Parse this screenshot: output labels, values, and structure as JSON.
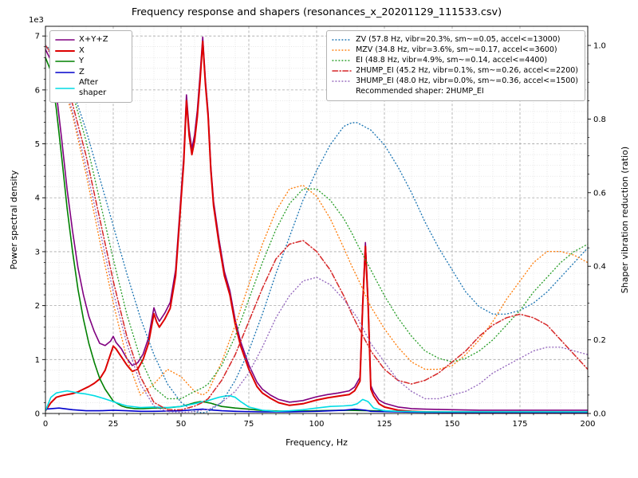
{
  "chart_data": {
    "type": "line",
    "title": "Frequency response and shapers (resonances_x_20201129_111533.csv)",
    "xlabel": "Frequency, Hz",
    "ylabel_left": "Power spectral density",
    "ylabel_right": "Shaper vibration reduction (ratio)",
    "offset_text_left": "1e3",
    "xlim": [
      0,
      200
    ],
    "ylim_left": [
      0,
      7180
    ],
    "ylim_right": [
      0,
      1.052
    ],
    "x_minor_step": 5,
    "y_minor_step_left": 200,
    "grid": {
      "major_color": "#a6a6a6",
      "minor_color": "#d8d8d8"
    },
    "x_ticks": {
      "values": [
        0,
        25,
        50,
        75,
        100,
        125,
        150,
        175,
        200
      ],
      "labels": [
        "0",
        "25",
        "50",
        "75",
        "100",
        "125",
        "150",
        "175",
        "200"
      ]
    },
    "y_ticks_left": {
      "values": [
        0,
        1000,
        2000,
        3000,
        4000,
        5000,
        6000,
        7000
      ],
      "labels": [
        "0",
        "1",
        "2",
        "3",
        "4",
        "5",
        "6",
        "7"
      ]
    },
    "y_ticks_right": {
      "values": [
        0,
        0.2,
        0.4,
        0.6,
        0.8,
        1.0
      ],
      "labels": [
        "0.0",
        "0.2",
        "0.4",
        "0.6",
        "0.8",
        "1.0"
      ]
    },
    "psd_series": [
      {
        "name": "X+Y+Z",
        "label": "X+Y+Z",
        "color": "#800080",
        "style": "solid",
        "width": 1.6,
        "axis": "left",
        "x": [
          0,
          2,
          4,
          6,
          8,
          10,
          12,
          14,
          16,
          18,
          20,
          22,
          24,
          25,
          26,
          28,
          30,
          32,
          34,
          36,
          38,
          40,
          41,
          42,
          44,
          46,
          48,
          50,
          51,
          52,
          53,
          54,
          55,
          56,
          57,
          58,
          59,
          60,
          61,
          62,
          64,
          66,
          68,
          70,
          72,
          75,
          78,
          80,
          83,
          86,
          90,
          95,
          100,
          104,
          108,
          112,
          114,
          116,
          117,
          118,
          119,
          120,
          121,
          123,
          125,
          130,
          135,
          140,
          150,
          160,
          170,
          180,
          190,
          200
        ],
        "y": [
          6750,
          6550,
          5950,
          5080,
          4150,
          3380,
          2700,
          2200,
          1800,
          1520,
          1300,
          1260,
          1340,
          1430,
          1320,
          1200,
          1020,
          890,
          940,
          1100,
          1400,
          1960,
          1810,
          1710,
          1860,
          2060,
          2660,
          4060,
          4760,
          5910,
          5260,
          4910,
          5170,
          5620,
          6270,
          6980,
          6180,
          5580,
          4580,
          3930,
          3230,
          2630,
          2280,
          1730,
          1330,
          900,
          580,
          450,
          340,
          260,
          210,
          240,
          310,
          350,
          380,
          420,
          490,
          670,
          2070,
          3170,
          2070,
          520,
          400,
          250,
          190,
          120,
          90,
          80,
          70,
          60,
          60,
          60,
          60,
          60
        ]
      },
      {
        "name": "X",
        "label": "X",
        "color": "#dd0000",
        "style": "solid",
        "width": 2.0,
        "axis": "left",
        "x": [
          0,
          2,
          4,
          6,
          8,
          10,
          12,
          14,
          16,
          18,
          20,
          22,
          24,
          25,
          26,
          28,
          30,
          32,
          34,
          36,
          38,
          40,
          41,
          42,
          44,
          46,
          48,
          50,
          51,
          52,
          53,
          54,
          55,
          56,
          57,
          58,
          59,
          60,
          61,
          62,
          64,
          66,
          68,
          70,
          72,
          75,
          78,
          80,
          83,
          86,
          90,
          95,
          100,
          104,
          108,
          112,
          114,
          116,
          117,
          118,
          119,
          120,
          121,
          123,
          125,
          130,
          135,
          140,
          150,
          160,
          170,
          180,
          190,
          200
        ],
        "y": [
          50,
          200,
          300,
          330,
          350,
          370,
          400,
          450,
          500,
          560,
          640,
          800,
          1100,
          1250,
          1200,
          1050,
          900,
          780,
          820,
          1000,
          1300,
          1850,
          1700,
          1600,
          1750,
          1950,
          2550,
          3950,
          4650,
          5800,
          5150,
          4800,
          5050,
          5500,
          6150,
          6900,
          6100,
          5500,
          4500,
          3850,
          3150,
          2550,
          2200,
          1650,
          1250,
          820,
          500,
          380,
          280,
          200,
          150,
          180,
          250,
          290,
          320,
          350,
          420,
          600,
          2000,
          3100,
          2000,
          450,
          330,
          180,
          120,
          60,
          40,
          30,
          20,
          20,
          20,
          20,
          20,
          20
        ]
      },
      {
        "name": "Y",
        "label": "Y",
        "color": "#008000",
        "style": "solid",
        "width": 1.6,
        "axis": "left",
        "x": [
          0,
          2,
          4,
          6,
          8,
          10,
          12,
          14,
          16,
          18,
          20,
          22,
          25,
          28,
          30,
          33,
          36,
          40,
          45,
          50,
          53,
          55,
          57,
          59,
          61,
          63,
          65,
          70,
          75,
          80,
          90,
          100,
          110,
          120,
          130,
          140,
          150,
          160,
          170,
          180,
          190,
          200
        ],
        "y": [
          6600,
          6350,
          5650,
          4750,
          3800,
          3000,
          2300,
          1750,
          1300,
          950,
          650,
          450,
          230,
          140,
          110,
          90,
          90,
          100,
          105,
          130,
          170,
          200,
          220,
          210,
          190,
          160,
          130,
          100,
          80,
          55,
          40,
          50,
          60,
          50,
          40,
          30,
          30,
          30,
          30,
          30,
          30,
          30
        ]
      },
      {
        "name": "Z",
        "label": "Z",
        "color": "#0000cc",
        "style": "solid",
        "width": 1.6,
        "axis": "left",
        "x": [
          0,
          5,
          10,
          15,
          20,
          25,
          30,
          35,
          40,
          45,
          50,
          55,
          58,
          60,
          65,
          70,
          80,
          90,
          100,
          110,
          114,
          118,
          120,
          130,
          140,
          150,
          160,
          180,
          200
        ],
        "y": [
          80,
          100,
          70,
          50,
          50,
          60,
          50,
          40,
          40,
          45,
          50,
          70,
          80,
          70,
          50,
          40,
          30,
          30,
          40,
          60,
          80,
          60,
          40,
          30,
          20,
          20,
          20,
          20,
          20
        ]
      },
      {
        "name": "After shaper",
        "label": "After\nshaper",
        "color": "#00dce4",
        "style": "solid",
        "width": 1.6,
        "axis": "left",
        "x": [
          0,
          2,
          4,
          6,
          8,
          10,
          12,
          15,
          18,
          20,
          22,
          25,
          28,
          30,
          35,
          40,
          45,
          50,
          53,
          55,
          58,
          60,
          62,
          64,
          66,
          68,
          70,
          72,
          75,
          80,
          85,
          90,
          95,
          100,
          105,
          110,
          113,
          115,
          117,
          119,
          121,
          125,
          130,
          140,
          150,
          160,
          170,
          180,
          190,
          200
        ],
        "y": [
          50,
          300,
          380,
          400,
          420,
          400,
          380,
          360,
          330,
          300,
          270,
          220,
          170,
          140,
          110,
          120,
          110,
          130,
          160,
          180,
          220,
          240,
          270,
          300,
          320,
          330,
          300,
          220,
          120,
          60,
          40,
          50,
          70,
          100,
          130,
          140,
          150,
          180,
          260,
          220,
          100,
          50,
          40,
          30,
          30,
          30,
          30,
          30,
          30,
          30
        ]
      }
    ],
    "shaper_freqs": [
      0,
      5,
      10,
      15,
      20,
      25,
      30,
      35,
      40,
      45,
      50,
      55,
      58,
      60,
      65,
      70,
      75,
      80,
      85,
      90,
      95,
      100,
      105,
      110,
      113,
      115,
      120,
      125,
      130,
      135,
      140,
      145,
      150,
      155,
      160,
      165,
      170,
      175,
      180,
      185,
      190,
      195,
      200
    ],
    "shaper_series": [
      {
        "name": "ZV",
        "label": "ZV (57.8 Hz, vibr=20.3%, sm~=0.05, accel<=13000)",
        "color": "#1f77b4",
        "style": "dotted",
        "width": 1.4,
        "axis": "right",
        "vals": [
          1.0,
          0.97,
          0.88,
          0.77,
          0.64,
          0.51,
          0.38,
          0.26,
          0.16,
          0.08,
          0.03,
          0.005,
          0.002,
          0.005,
          0.03,
          0.09,
          0.17,
          0.27,
          0.38,
          0.48,
          0.58,
          0.66,
          0.73,
          0.78,
          0.79,
          0.79,
          0.77,
          0.73,
          0.67,
          0.6,
          0.52,
          0.45,
          0.39,
          0.33,
          0.29,
          0.27,
          0.27,
          0.28,
          0.3,
          0.33,
          0.37,
          0.41,
          0.45
        ]
      },
      {
        "name": "MZV",
        "label": "MZV (34.8 Hz, vibr=3.6%, sm~=0.17, accel<=3600)",
        "color": "#ff7f0e",
        "style": "dotted",
        "width": 1.4,
        "axis": "right",
        "vals": [
          1.0,
          0.93,
          0.81,
          0.65,
          0.47,
          0.3,
          0.15,
          0.05,
          0.08,
          0.12,
          0.1,
          0.06,
          0.05,
          0.06,
          0.14,
          0.24,
          0.35,
          0.46,
          0.55,
          0.61,
          0.62,
          0.59,
          0.53,
          0.45,
          0.4,
          0.37,
          0.29,
          0.23,
          0.18,
          0.14,
          0.12,
          0.12,
          0.13,
          0.16,
          0.2,
          0.25,
          0.31,
          0.36,
          0.41,
          0.44,
          0.44,
          0.43,
          0.41
        ]
      },
      {
        "name": "EI",
        "label": "EI (48.8 Hz, vibr=4.9%, sm~=0.14, accel<=4400)",
        "color": "#2ca02c",
        "style": "dotted",
        "width": 1.4,
        "axis": "right",
        "vals": [
          1.0,
          0.96,
          0.87,
          0.74,
          0.58,
          0.42,
          0.27,
          0.15,
          0.07,
          0.04,
          0.04,
          0.06,
          0.07,
          0.08,
          0.13,
          0.21,
          0.31,
          0.41,
          0.5,
          0.57,
          0.61,
          0.61,
          0.58,
          0.53,
          0.49,
          0.46,
          0.39,
          0.32,
          0.26,
          0.21,
          0.17,
          0.15,
          0.14,
          0.15,
          0.17,
          0.2,
          0.24,
          0.28,
          0.33,
          0.37,
          0.41,
          0.44,
          0.46
        ]
      },
      {
        "name": "2HUMP_EI",
        "label": "2HUMP_EI (45.2 Hz, vibr=0.1%, sm~=0.26, accel<=2200)",
        "color": "#d62728",
        "style": "dashdot",
        "width": 1.5,
        "axis": "right",
        "vals": [
          1.0,
          0.95,
          0.84,
          0.7,
          0.53,
          0.36,
          0.21,
          0.1,
          0.03,
          0.01,
          0.01,
          0.02,
          0.03,
          0.04,
          0.09,
          0.16,
          0.25,
          0.34,
          0.42,
          0.46,
          0.47,
          0.44,
          0.39,
          0.32,
          0.27,
          0.24,
          0.17,
          0.12,
          0.09,
          0.08,
          0.09,
          0.11,
          0.14,
          0.17,
          0.21,
          0.24,
          0.26,
          0.27,
          0.26,
          0.24,
          0.2,
          0.16,
          0.12
        ]
      },
      {
        "name": "3HUMP_EI",
        "label": "3HUMP_EI (48.0 Hz, vibr=0.0%, sm~=0.36, accel<=1500)",
        "color": "#9467bd",
        "style": "dotted",
        "width": 1.4,
        "axis": "right",
        "vals": [
          1.0,
          0.94,
          0.82,
          0.67,
          0.5,
          0.33,
          0.19,
          0.08,
          0.02,
          0.005,
          0.003,
          0.005,
          0.01,
          0.01,
          0.03,
          0.06,
          0.11,
          0.18,
          0.26,
          0.32,
          0.36,
          0.37,
          0.35,
          0.31,
          0.28,
          0.26,
          0.19,
          0.14,
          0.09,
          0.06,
          0.04,
          0.04,
          0.05,
          0.06,
          0.08,
          0.11,
          0.13,
          0.15,
          0.17,
          0.18,
          0.18,
          0.17,
          0.16
        ]
      }
    ],
    "recommended_shaper": "2HUMP_EI",
    "legend_note": "Recommended shaper: 2HUMP_EI"
  }
}
